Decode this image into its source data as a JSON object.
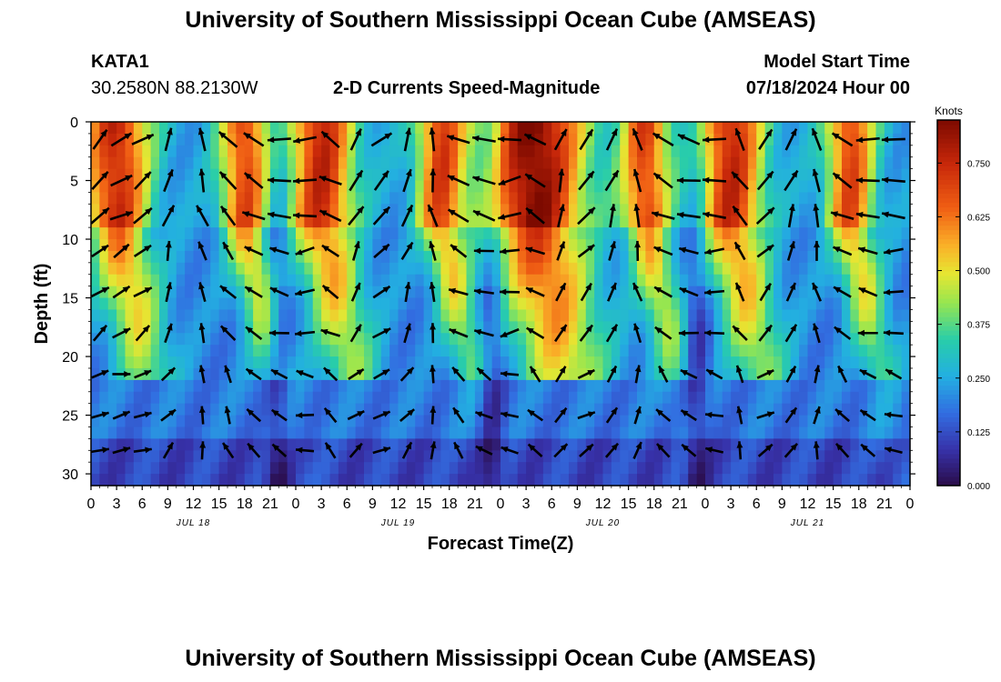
{
  "header": {
    "title": "University of Southern Mississippi Ocean Cube (AMSEAS)",
    "station": "KATA1",
    "coords": "30.2580N  88.2130W",
    "plot_title": "2-D Currents Speed-Magnitude",
    "model_start_label": "Model Start Time",
    "model_start_value": "07/18/2024 Hour 00",
    "footer_title": "University of Southern Mississippi Ocean Cube (AMSEAS)"
  },
  "chart_data": {
    "type": "heatmap",
    "title": "2-D Currents Speed-Magnitude",
    "xlabel": "Forecast Time(Z)",
    "ylabel": "Depth (ft)",
    "x_tick_labels": [
      "0",
      "3",
      "6",
      "9",
      "12",
      "15",
      "18",
      "21",
      "0",
      "3",
      "6",
      "9",
      "12",
      "15",
      "18",
      "21",
      "0",
      "3",
      "6",
      "9",
      "12",
      "15",
      "18",
      "21",
      "0",
      "3",
      "6",
      "9",
      "12",
      "15",
      "18",
      "21",
      "0"
    ],
    "date_labels": [
      {
        "label": "JUL 18",
        "hour": 12
      },
      {
        "label": "JUL 19",
        "hour": 36
      },
      {
        "label": "JUL 20",
        "hour": 60
      },
      {
        "label": "JUL 21",
        "hour": 84
      }
    ],
    "xlim": [
      0,
      96
    ],
    "ylim": [
      0,
      31
    ],
    "y_ticks": [
      0,
      5,
      10,
      15,
      20,
      25,
      30
    ],
    "colorbar": {
      "title": "Knots",
      "range": [
        0,
        0.85
      ],
      "tick_values": [
        0.0,
        0.125,
        0.25,
        0.375,
        0.5,
        0.625,
        0.75
      ],
      "tick_labels": [
        "0.000",
        "0.125",
        "0.250",
        "0.375",
        "0.500",
        "0.625",
        "0.750"
      ]
    },
    "speed_model": {
      "note": "approximate speed field (knots) read from the color shading",
      "ridges": [
        {
          "t": 3,
          "b": 3,
          "top": 0.72,
          "bottom": 0.14
        },
        {
          "t": 18,
          "b": 2,
          "top": 0.66,
          "bottom": 0.18
        },
        {
          "t": 27,
          "b": 3,
          "top": 0.72,
          "bottom": 0.14
        },
        {
          "t": 41,
          "b": 2,
          "top": 0.66,
          "bottom": 0.18
        },
        {
          "t": 52,
          "b": 5,
          "top": 0.82,
          "bottom": 0.14
        },
        {
          "t": 65,
          "b": 2,
          "top": 0.66,
          "bottom": 0.18
        },
        {
          "t": 75,
          "b": 3,
          "top": 0.72,
          "bottom": 0.14
        },
        {
          "t": 89,
          "b": 2,
          "top": 0.66,
          "bottom": 0.18
        }
      ],
      "troughs": [
        {
          "t": 22,
          "b": 1.5
        },
        {
          "t": 47,
          "b": 1.5
        },
        {
          "t": 71,
          "b": 1.5
        }
      ]
    },
    "arrows": {
      "times": [
        0,
        2.5,
        5,
        8,
        12,
        15,
        18,
        21,
        24,
        27,
        30,
        33,
        36,
        39,
        42,
        45,
        48,
        51,
        54,
        57,
        60,
        63,
        66,
        69,
        72,
        75,
        78,
        81,
        84,
        87,
        90,
        93
      ],
      "depths": [
        1.5,
        5,
        8,
        11,
        14.5,
        18,
        21.5,
        25,
        28
      ],
      "direction_deg_by_time": [
        50,
        60,
        55,
        20,
        340,
        320,
        300,
        280,
        260,
        300,
        30,
        50,
        20,
        350,
        300,
        280,
        260,
        300,
        20,
        40,
        20,
        350,
        300,
        280,
        270,
        330,
        40,
        20,
        350,
        300,
        280,
        270
      ],
      "units": "degrees clockwise from north (flow direction)"
    }
  }
}
